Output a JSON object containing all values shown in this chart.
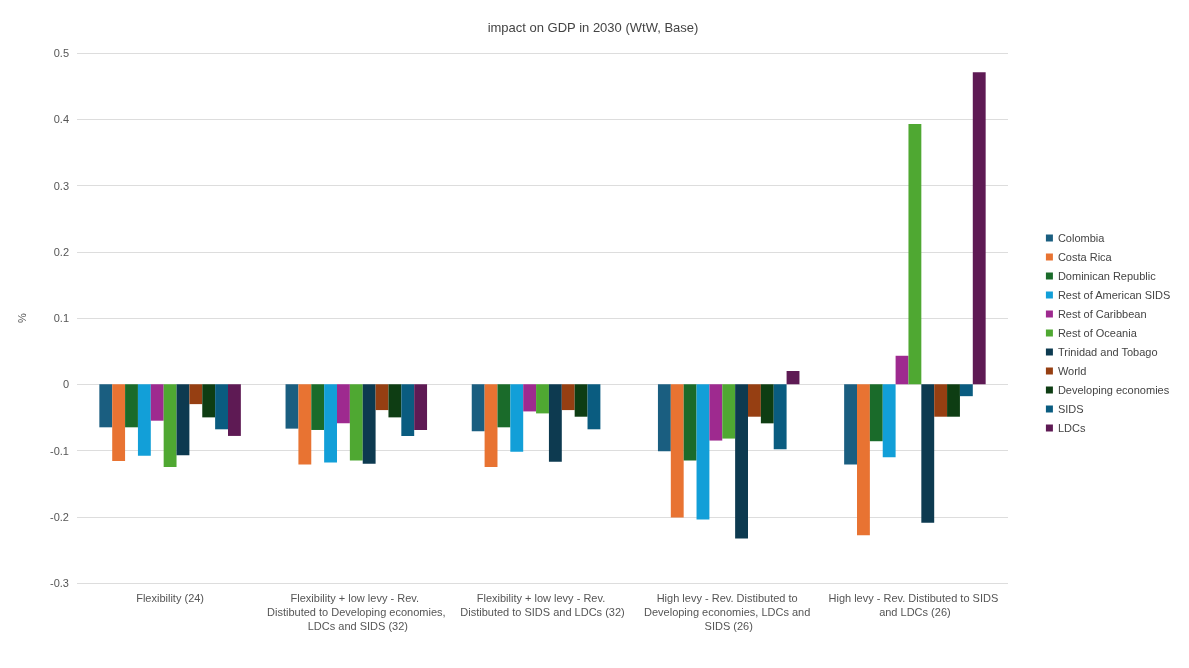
{
  "chart_data": {
    "type": "bar",
    "title": "impact on GDP in 2030 (WtW, Base)",
    "ylabel": "%",
    "categories": [
      "Flexibility (24)",
      "Flexibility + low levy - Rev. Distibuted to Developing economies, LDCs and SIDS (32)",
      "Flexibility + low levy - Rev. Distibuted to SIDS and LDCs (32)",
      "High levy - Rev. Distibuted to Developing economies, LDCs and SIDS (26)",
      "High levy - Rev. Distibuted to SIDS and LDCs (26)"
    ],
    "series": [
      {
        "name": "Colombia",
        "color": "#1a5e80",
        "values": [
          -0.065,
          -0.067,
          -0.071,
          -0.101,
          -0.121
        ]
      },
      {
        "name": "Costa Rica",
        "color": "#e87332",
        "values": [
          -0.116,
          -0.121,
          -0.125,
          -0.201,
          -0.228
        ]
      },
      {
        "name": "Dominican Republic",
        "color": "#1a6b2a",
        "values": [
          -0.065,
          -0.069,
          -0.065,
          -0.115,
          -0.086
        ]
      },
      {
        "name": "Rest of American SIDS",
        "color": "#129fd8",
        "values": [
          -0.108,
          -0.118,
          -0.102,
          -0.204,
          -0.11
        ]
      },
      {
        "name": "Rest of Caribbean",
        "color": "#9e2a8f",
        "values": [
          -0.055,
          -0.059,
          -0.041,
          -0.085,
          0.043
        ]
      },
      {
        "name": "Rest of Oceania",
        "color": "#4fa832",
        "values": [
          -0.125,
          -0.115,
          -0.044,
          -0.082,
          0.393
        ]
      },
      {
        "name": "Trinidad and Tobago",
        "color": "#0d3a50",
        "values": [
          -0.107,
          -0.12,
          -0.117,
          -0.233,
          -0.209
        ]
      },
      {
        "name": "World",
        "color": "#963f12",
        "values": [
          -0.03,
          -0.039,
          -0.039,
          -0.049,
          -0.049
        ]
      },
      {
        "name": "Developing economies",
        "color": "#0e3d13",
        "values": [
          -0.05,
          -0.05,
          -0.049,
          -0.059,
          -0.049
        ]
      },
      {
        "name": "SIDS",
        "color": "#0a5c80",
        "values": [
          -0.068,
          -0.078,
          -0.068,
          -0.098,
          -0.018
        ]
      },
      {
        "name": "LDCs",
        "color": "#5e1a54",
        "values": [
          -0.078,
          -0.069,
          null,
          0.02,
          0.471
        ]
      }
    ],
    "ylim": [
      -0.3,
      0.5
    ],
    "yticks": [
      -0.3,
      -0.2,
      -0.1,
      0,
      0.1,
      0.2,
      0.3,
      0.4,
      0.5
    ],
    "grid": "y",
    "legend": "right"
  }
}
